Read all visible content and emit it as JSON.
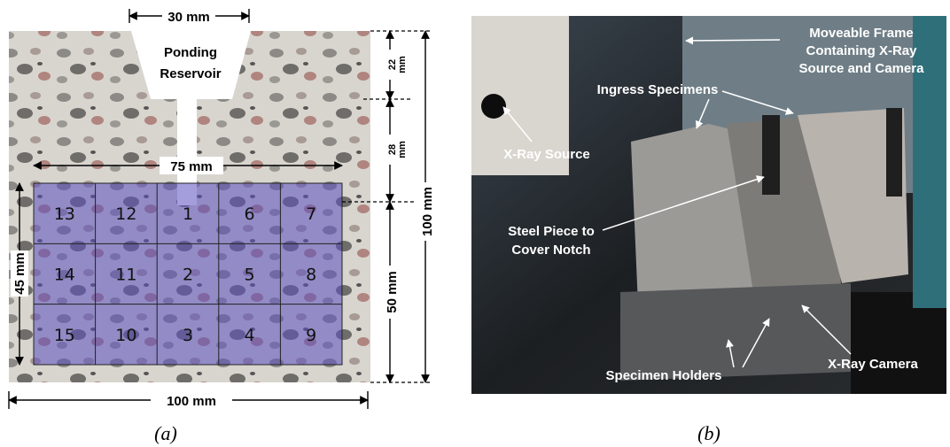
{
  "panel_a": {
    "reservoir": [
      "Ponding",
      "Reservoir"
    ],
    "width_reservoir": "30 mm",
    "width_grid": "75 mm",
    "height_grid": "45 mm",
    "width_total": "100 mm",
    "h22": [
      "22",
      "mm"
    ],
    "h28": [
      "28",
      "mm"
    ],
    "height_lower": "50 mm",
    "height_total": "100 mm",
    "grid": [
      [
        "13",
        "12",
        "1",
        "6",
        "7"
      ],
      [
        "14",
        "11",
        "2",
        "5",
        "8"
      ],
      [
        "15",
        "10",
        "3",
        "4",
        "9"
      ]
    ],
    "caption": "(a)"
  },
  "panel_b": {
    "frame": [
      "Moveable Frame",
      "Containing X-Ray",
      "Source and Camera"
    ],
    "ingress": "Ingress Specimens",
    "source": "X-Ray Source",
    "steel": [
      "Steel Piece to",
      "Cover Notch"
    ],
    "holders": "Specimen Holders",
    "camera": "X-Ray Camera",
    "caption": "(b)"
  }
}
